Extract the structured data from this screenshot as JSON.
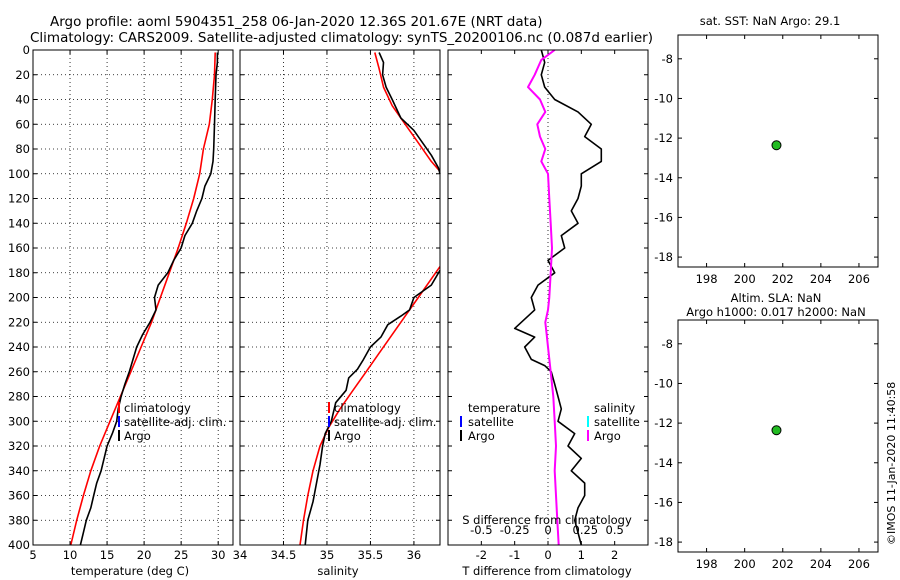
{
  "header": {
    "line1": "Argo profile: aoml 5904351_258 06-Jan-2020 12.36S 201.67E (NRT data)",
    "line2": "Climatology: CARS2009. Satellite-adjusted climatology: synTS_20200106.nc (0.087d earlier)"
  },
  "timestamp": "©IMOS 11-Jan-2020 11:40:58",
  "colors": {
    "climatology": "#ff0000",
    "satellite_adj": "#0000ff",
    "argo": "#000000",
    "salinity_diff": "#ff00ff",
    "salinity_satellite": "#00ffff",
    "marker_fill": "#22bb22"
  },
  "chart_data": [
    {
      "type": "line",
      "id": "temperature-profile",
      "xlabel": "temperature (deg C)",
      "ylabel": "",
      "xlim": [
        5,
        32
      ],
      "ylim": [
        400,
        0
      ],
      "xticks": [
        "5",
        "10",
        "15",
        "20",
        "25",
        "30"
      ],
      "yticks": [
        "0",
        "20",
        "40",
        "60",
        "80",
        "100",
        "120",
        "140",
        "160",
        "180",
        "200",
        "220",
        "240",
        "260",
        "280",
        "300",
        "320",
        "340",
        "360",
        "380",
        "400"
      ],
      "grid": true,
      "legend": [
        "climatology",
        "satellite-adj. clim.",
        "Argo"
      ],
      "legend_position": "center-left",
      "series": [
        {
          "name": "climatology",
          "points": [
            [
              29.6,
              2
            ],
            [
              29.5,
              20
            ],
            [
              29.2,
              40
            ],
            [
              28.8,
              60
            ],
            [
              28.0,
              80
            ],
            [
              27.5,
              100
            ],
            [
              26.7,
              120
            ],
            [
              25.7,
              140
            ],
            [
              24.6,
              160
            ],
            [
              23.4,
              180
            ],
            [
              22.2,
              200
            ],
            [
              21.0,
              220
            ],
            [
              19.6,
              240
            ],
            [
              18.2,
              260
            ],
            [
              16.8,
              280
            ],
            [
              15.4,
              300
            ],
            [
              14.0,
              320
            ],
            [
              12.8,
              340
            ],
            [
              11.8,
              360
            ],
            [
              10.9,
              380
            ],
            [
              10.1,
              400
            ]
          ]
        },
        {
          "name": "Argo",
          "points": [
            [
              29.9,
              2
            ],
            [
              29.9,
              10
            ],
            [
              29.7,
              20
            ],
            [
              29.6,
              40
            ],
            [
              29.5,
              60
            ],
            [
              29.4,
              80
            ],
            [
              29.3,
              90
            ],
            [
              29.0,
              100
            ],
            [
              28.2,
              110
            ],
            [
              27.8,
              120
            ],
            [
              27.1,
              130
            ],
            [
              26.5,
              140
            ],
            [
              25.5,
              150
            ],
            [
              25.0,
              160
            ],
            [
              24.0,
              170
            ],
            [
              23.2,
              180
            ],
            [
              21.9,
              190
            ],
            [
              21.4,
              200
            ],
            [
              21.6,
              210
            ],
            [
              20.8,
              220
            ],
            [
              19.8,
              230
            ],
            [
              19.0,
              240
            ],
            [
              18.5,
              250
            ],
            [
              18.0,
              260
            ],
            [
              17.4,
              270
            ],
            [
              16.9,
              280
            ],
            [
              16.5,
              290
            ],
            [
              16.3,
              300
            ],
            [
              15.7,
              310
            ],
            [
              15.0,
              320
            ],
            [
              14.6,
              330
            ],
            [
              14.2,
              340
            ],
            [
              13.6,
              350
            ],
            [
              13.2,
              360
            ],
            [
              12.8,
              370
            ],
            [
              12.2,
              380
            ],
            [
              11.8,
              390
            ],
            [
              11.4,
              400
            ]
          ]
        }
      ]
    },
    {
      "type": "line",
      "id": "salinity-profile",
      "xlabel": "salinity",
      "xlim": [
        34,
        36.3
      ],
      "ylim": [
        400,
        0
      ],
      "xticks": [
        "34",
        "34.5",
        "35",
        "35.5",
        "36"
      ],
      "grid": true,
      "legend": [
        "climatology",
        "satellite-adj. clim.",
        "Argo"
      ],
      "legend_position": "center-left",
      "series": [
        {
          "name": "climatology",
          "points": [
            [
              35.55,
              2
            ],
            [
              35.6,
              15
            ],
            [
              35.65,
              30
            ],
            [
              35.75,
              45
            ],
            [
              35.9,
              60
            ],
            [
              36.05,
              75
            ],
            [
              36.2,
              90
            ],
            [
              36.3,
              98
            ]
          ]
        },
        {
          "name": "climatology-deep",
          "points": [
            [
              36.3,
              175
            ],
            [
              36.2,
              185
            ],
            [
              36.05,
              200
            ],
            [
              35.9,
              215
            ],
            [
              35.75,
              230
            ],
            [
              35.6,
              245
            ],
            [
              35.45,
              260
            ],
            [
              35.3,
              275
            ],
            [
              35.15,
              290
            ],
            [
              35.02,
              305
            ],
            [
              34.92,
              320
            ],
            [
              34.84,
              340
            ],
            [
              34.78,
              360
            ],
            [
              34.73,
              380
            ],
            [
              34.69,
              400
            ]
          ]
        },
        {
          "name": "Argo",
          "points": [
            [
              35.6,
              2
            ],
            [
              35.65,
              10
            ],
            [
              35.64,
              20
            ],
            [
              35.68,
              30
            ],
            [
              35.75,
              40
            ],
            [
              35.85,
              55
            ],
            [
              36.0,
              65
            ],
            [
              36.1,
              75
            ],
            [
              36.2,
              85
            ],
            [
              36.28,
              95
            ],
            [
              36.3,
              100
            ]
          ]
        },
        {
          "name": "Argo-deep",
          "points": [
            [
              36.3,
              178
            ],
            [
              36.2,
              190
            ],
            [
              36.0,
              200
            ],
            [
              35.95,
              210
            ],
            [
              35.85,
              215
            ],
            [
              35.7,
              222
            ],
            [
              35.62,
              232
            ],
            [
              35.5,
              240
            ],
            [
              35.42,
              250
            ],
            [
              35.35,
              258
            ],
            [
              35.25,
              265
            ],
            [
              35.22,
              275
            ],
            [
              35.1,
              285
            ],
            [
              35.05,
              300
            ],
            [
              34.98,
              310
            ],
            [
              34.95,
              320
            ],
            [
              34.92,
              335
            ],
            [
              34.88,
              350
            ],
            [
              34.84,
              365
            ],
            [
              34.78,
              380
            ],
            [
              34.75,
              400
            ]
          ]
        }
      ]
    },
    {
      "type": "line",
      "id": "difference-profile",
      "xlabel": "T difference from climatology",
      "top_label": "S difference from climatology",
      "xlim": [
        -3,
        3
      ],
      "ylim": [
        400,
        0
      ],
      "xticks": [
        "-2",
        "-1",
        "0",
        "1",
        "2"
      ],
      "top_xticks": [
        "-0.5",
        "-0.25",
        "0",
        "0.25",
        "0.5"
      ],
      "grid": false,
      "zero_line": true,
      "legend_left_title": "temperature",
      "legend_left": [
        "satellite",
        "Argo"
      ],
      "legend_right_title": "salinity",
      "legend_right": [
        "satellite",
        "Argo"
      ],
      "series": [
        {
          "name": "T Argo",
          "points": [
            [
              -0.2,
              0
            ],
            [
              -0.1,
              10
            ],
            [
              -0.2,
              20
            ],
            [
              -0.1,
              30
            ],
            [
              0.2,
              40
            ],
            [
              0.9,
              50
            ],
            [
              1.3,
              60
            ],
            [
              1.1,
              70
            ],
            [
              1.6,
              80
            ],
            [
              1.6,
              90
            ],
            [
              1.0,
              100
            ],
            [
              1.0,
              110
            ],
            [
              0.9,
              120
            ],
            [
              0.7,
              130
            ],
            [
              0.9,
              140
            ],
            [
              0.4,
              150
            ],
            [
              0.5,
              160
            ],
            [
              0.0,
              170
            ],
            [
              0.2,
              180
            ],
            [
              -0.3,
              190
            ],
            [
              -0.5,
              200
            ],
            [
              -0.4,
              210
            ],
            [
              -0.8,
              220
            ],
            [
              -1.0,
              225
            ],
            [
              -0.4,
              232
            ],
            [
              -0.7,
              240
            ],
            [
              -0.5,
              250
            ],
            [
              -0.1,
              255
            ],
            [
              0.1,
              260
            ],
            [
              0.2,
              270
            ],
            [
              0.3,
              280
            ],
            [
              0.4,
              290
            ],
            [
              0.3,
              300
            ],
            [
              0.8,
              310
            ],
            [
              0.6,
              320
            ],
            [
              1.0,
              330
            ],
            [
              0.7,
              340
            ],
            [
              1.1,
              350
            ],
            [
              1.1,
              360
            ],
            [
              0.9,
              370
            ],
            [
              0.8,
              380
            ],
            [
              0.9,
              390
            ],
            [
              1.0,
              400
            ]
          ]
        },
        {
          "name": "S Argo",
          "points": [
            [
              0.05,
              0
            ],
            [
              -0.05,
              8
            ],
            [
              -0.1,
              20
            ],
            [
              -0.15,
              30
            ],
            [
              -0.06,
              40
            ],
            [
              -0.02,
              50
            ],
            [
              -0.08,
              60
            ],
            [
              -0.06,
              70
            ],
            [
              -0.02,
              80
            ],
            [
              -0.05,
              90
            ],
            [
              0.0,
              100
            ],
            [
              0.01,
              120
            ],
            [
              0.02,
              140
            ],
            [
              0.03,
              160
            ],
            [
              0.02,
              180
            ],
            [
              0.01,
              200
            ],
            [
              0.0,
              210
            ],
            [
              -0.02,
              220
            ],
            [
              -0.01,
              230
            ],
            [
              0.0,
              240
            ],
            [
              0.02,
              260
            ],
            [
              0.04,
              280
            ],
            [
              0.05,
              300
            ],
            [
              0.06,
              320
            ],
            [
              0.05,
              340
            ],
            [
              0.06,
              360
            ],
            [
              0.07,
              380
            ],
            [
              0.08,
              400
            ]
          ]
        }
      ]
    },
    {
      "type": "scatter",
      "id": "sst-map",
      "title": "sat. SST: NaN Argo: 29.1",
      "xlim": [
        196.5,
        207
      ],
      "ylim": [
        -18.5,
        -6.8
      ],
      "xticks": [
        "198",
        "200",
        "202",
        "204",
        "206"
      ],
      "yticks": [
        "-8",
        "-10",
        "-12",
        "-14",
        "-16",
        "-18"
      ],
      "points": [
        [
          201.67,
          -12.36
        ]
      ]
    },
    {
      "type": "scatter",
      "id": "sla-map",
      "title_line1": "Altim. SLA: NaN",
      "title_line2": "Argo h1000: 0.017 h2000: NaN",
      "xlim": [
        196.5,
        207
      ],
      "ylim": [
        -18.5,
        -6.8
      ],
      "xticks": [
        "198",
        "200",
        "202",
        "204",
        "206"
      ],
      "yticks": [
        "-8",
        "-10",
        "-12",
        "-14",
        "-16",
        "-18"
      ],
      "points": [
        [
          201.67,
          -12.36
        ]
      ]
    }
  ]
}
